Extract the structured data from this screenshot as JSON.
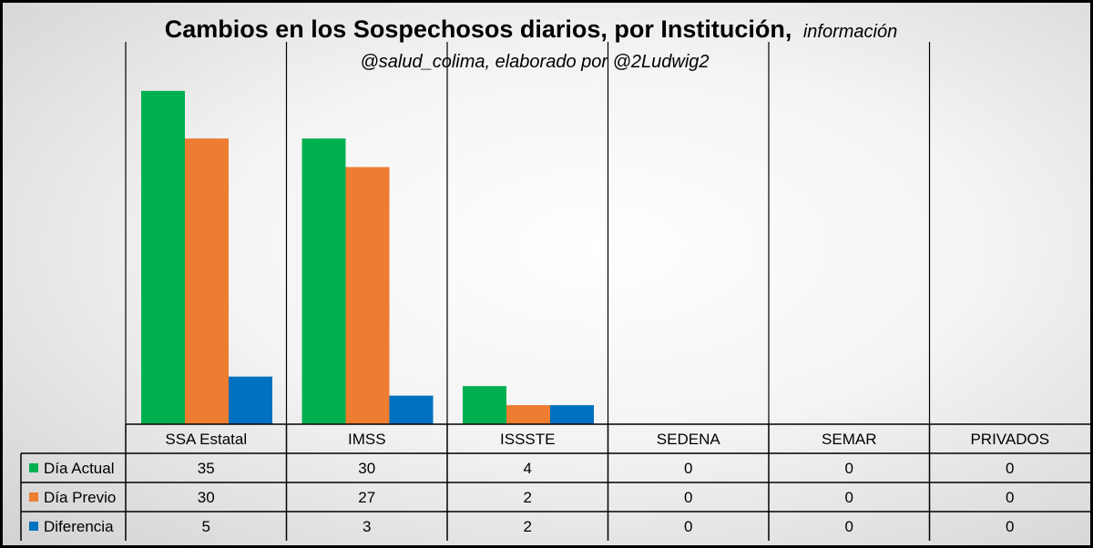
{
  "chart_data": {
    "type": "bar",
    "title": "Cambios en los Sospechosos diarios, por Institución,",
    "subtitle_line1": "información",
    "subtitle_line2": "@salud_colima, elaborado por @2Ludwig2",
    "categories": [
      "SSA Estatal",
      "IMSS",
      "ISSSTE",
      "SEDENA",
      "SEMAR",
      "PRIVADOS"
    ],
    "series": [
      {
        "name": "Día Actual",
        "values": [
          35,
          30,
          4,
          0,
          0,
          0
        ],
        "color": "#00b050"
      },
      {
        "name": "Día Previo",
        "values": [
          30,
          27,
          2,
          0,
          0,
          0
        ],
        "color": "#ed7d31"
      },
      {
        "name": "Diferencia",
        "values": [
          5,
          3,
          2,
          0,
          0,
          0
        ],
        "color": "#0070c0"
      }
    ],
    "ylim": [
      0,
      39
    ],
    "grid": false,
    "legend": "data-table"
  }
}
